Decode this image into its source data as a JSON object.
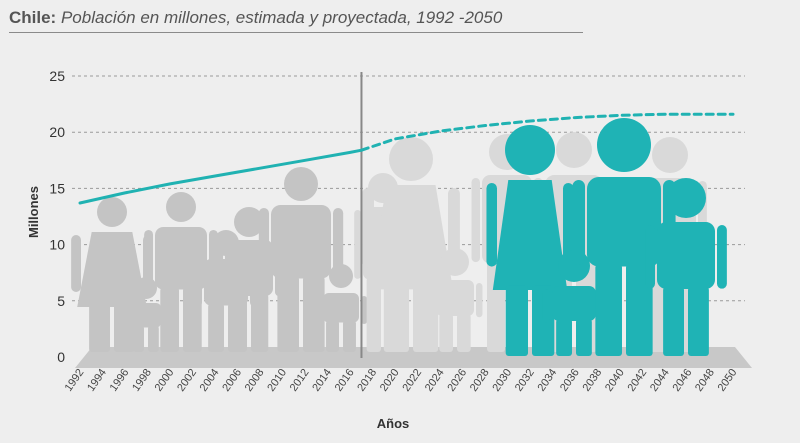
{
  "title": {
    "bold": "Chile:",
    "rest": " Población en millones, estimada y proyectada, 1992 -2050"
  },
  "colors": {
    "line": "#20b2b2",
    "family_teal": "#1fb3b5",
    "silhouette_grey": "#c4c4c4",
    "silhouette_light": "#d9d9d9",
    "floor": "#c8c8c8",
    "grid": "#9a9a9a",
    "divider": "#888888"
  },
  "chart_data": {
    "type": "line",
    "xlabel": "Años",
    "ylabel": "Millones",
    "ylim": [
      0,
      25
    ],
    "yticks": [
      0,
      5,
      10,
      15,
      20,
      25
    ],
    "x_ticks": [
      "1992",
      "1994",
      "1996",
      "1998",
      "2000",
      "2002",
      "2004",
      "2006",
      "2008",
      "2010",
      "2012",
      "2014",
      "2016",
      "2018",
      "2020",
      "2022",
      "2024",
      "2026",
      "2028",
      "2030",
      "2032",
      "2034",
      "2036",
      "2038",
      "2040",
      "2042",
      "2044",
      "2046",
      "2048",
      "2050"
    ],
    "grid": "horizontal dashed",
    "divider_year": 2017,
    "series": [
      {
        "style": "solid",
        "points": [
          [
            1992,
            13.7
          ],
          [
            1996,
            14.6
          ],
          [
            2000,
            15.4
          ],
          [
            2004,
            16.1
          ],
          [
            2008,
            16.8
          ],
          [
            2012,
            17.5
          ],
          [
            2016,
            18.2
          ],
          [
            2017,
            18.4
          ]
        ]
      },
      {
        "style": "dashed",
        "points": [
          [
            2017,
            18.4
          ],
          [
            2020,
            19.4
          ],
          [
            2024,
            20.1
          ],
          [
            2028,
            20.6
          ],
          [
            2032,
            21.0
          ],
          [
            2036,
            21.3
          ],
          [
            2040,
            21.5
          ],
          [
            2044,
            21.6
          ],
          [
            2050,
            21.6
          ]
        ]
      }
    ]
  }
}
